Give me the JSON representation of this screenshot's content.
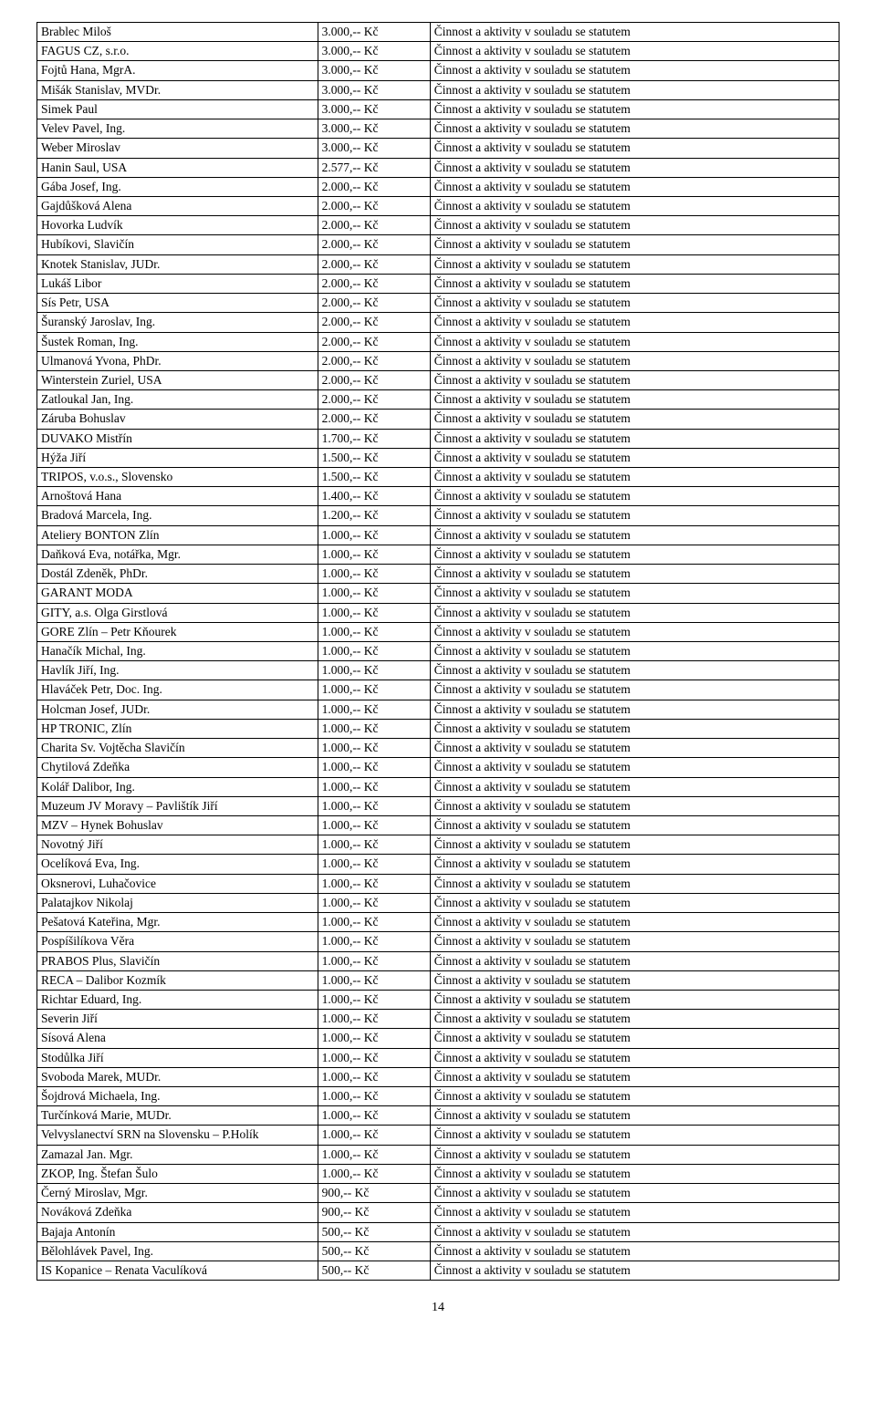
{
  "activity_text": "Činnost a aktivity v souladu se statutem",
  "rows": [
    {
      "name": "Brablec Miloš",
      "amount": "3.000,-- Kč"
    },
    {
      "name": "FAGUS CZ, s.r.o.",
      "amount": "3.000,-- Kč"
    },
    {
      "name": "Fojtů Hana, MgrA.",
      "amount": "3.000,-- Kč"
    },
    {
      "name": "Mišák Stanislav, MVDr.",
      "amount": "3.000,-- Kč"
    },
    {
      "name": "Simek Paul",
      "amount": "3.000,-- Kč"
    },
    {
      "name": "Velev Pavel, Ing.",
      "amount": "3.000,-- Kč"
    },
    {
      "name": "Weber Miroslav",
      "amount": "3.000,-- Kč"
    },
    {
      "name": "Hanin Saul, USA",
      "amount": "2.577,-- Kč"
    },
    {
      "name": "Gába Josef, Ing.",
      "amount": "2.000,-- Kč"
    },
    {
      "name": "Gajdůšková Alena",
      "amount": "2.000,-- Kč"
    },
    {
      "name": "Hovorka Ludvík",
      "amount": "2.000,-- Kč"
    },
    {
      "name": "Hubíkovi, Slavičín",
      "amount": "2.000,-- Kč"
    },
    {
      "name": "Knotek Stanislav, JUDr.",
      "amount": "2.000,-- Kč"
    },
    {
      "name": "Lukáš Libor",
      "amount": "2.000,-- Kč"
    },
    {
      "name": "Sís Petr, USA",
      "amount": "2.000,-- Kč"
    },
    {
      "name": "Šuranský Jaroslav, Ing.",
      "amount": "2.000,-- Kč"
    },
    {
      "name": "Šustek Roman, Ing.",
      "amount": "2.000,-- Kč"
    },
    {
      "name": "Ulmanová Yvona, PhDr.",
      "amount": "2.000,-- Kč"
    },
    {
      "name": "Winterstein Zuriel, USA",
      "amount": "2.000,-- Kč"
    },
    {
      "name": "Zatloukal Jan, Ing.",
      "amount": "2.000,-- Kč"
    },
    {
      "name": "Záruba Bohuslav",
      "amount": "2.000,-- Kč"
    },
    {
      "name": "DUVAKO Mistřín",
      "amount": "1.700,-- Kč"
    },
    {
      "name": "Hýža Jiří",
      "amount": "1.500,-- Kč"
    },
    {
      "name": "TRIPOS, v.o.s., Slovensko",
      "amount": "1.500,-- Kč"
    },
    {
      "name": "Arnoštová Hana",
      "amount": "1.400,-- Kč"
    },
    {
      "name": "Bradová Marcela, Ing.",
      "amount": "1.200,-- Kč"
    },
    {
      "name": "Ateliery BONTON Zlín",
      "amount": "1.000,-- Kč"
    },
    {
      "name": "Daňková Eva, notářka, Mgr.",
      "amount": "1.000,-- Kč"
    },
    {
      "name": "Dostál Zdeněk, PhDr.",
      "amount": "1.000,-- Kč"
    },
    {
      "name": "GARANT MODA",
      "amount": "1.000,-- Kč"
    },
    {
      "name": "GITY, a.s. Olga Girstlová",
      "amount": "1.000,-- Kč"
    },
    {
      "name": "GORE Zlín – Petr Kňourek",
      "amount": "1.000,-- Kč"
    },
    {
      "name": "Hanačík Michal, Ing.",
      "amount": "1.000,-- Kč"
    },
    {
      "name": "Havlík Jiří, Ing.",
      "amount": "1.000,-- Kč"
    },
    {
      "name": "Hlaváček Petr, Doc. Ing.",
      "amount": "1.000,-- Kč"
    },
    {
      "name": "Holcman Josef, JUDr.",
      "amount": "1.000,-- Kč"
    },
    {
      "name": "HP TRONIC, Zlín",
      "amount": "1.000,-- Kč"
    },
    {
      "name": "Charita Sv. Vojtěcha Slavičín",
      "amount": "1.000,-- Kč"
    },
    {
      "name": "Chytilová Zdeňka",
      "amount": "1.000,-- Kč"
    },
    {
      "name": "Kolář Dalibor, Ing.",
      "amount": "1.000,-- Kč"
    },
    {
      "name": "Muzeum JV Moravy – Pavlištík Jiří",
      "amount": "1.000,-- Kč"
    },
    {
      "name": "MZV – Hynek Bohuslav",
      "amount": "1.000,-- Kč"
    },
    {
      "name": "Novotný Jiří",
      "amount": "1.000,-- Kč"
    },
    {
      "name": "Ocelíková Eva, Ing.",
      "amount": "1.000,-- Kč"
    },
    {
      "name": "Oksnerovi, Luhačovice",
      "amount": "1.000,-- Kč"
    },
    {
      "name": "Palatajkov Nikolaj",
      "amount": "1.000,-- Kč"
    },
    {
      "name": "Pešatová Kateřina, Mgr.",
      "amount": "1.000,-- Kč"
    },
    {
      "name": "Pospíšilíkova Věra",
      "amount": "1.000,-- Kč"
    },
    {
      "name": "PRABOS Plus, Slavičín",
      "amount": "1.000,-- Kč"
    },
    {
      "name": "RECA – Dalibor Kozmík",
      "amount": "1.000,-- Kč"
    },
    {
      "name": "Richtar Eduard, Ing.",
      "amount": "1.000,-- Kč"
    },
    {
      "name": "Severin Jiří",
      "amount": "1.000,-- Kč"
    },
    {
      "name": "Sísová Alena",
      "amount": "1.000,-- Kč"
    },
    {
      "name": "Stodůlka Jiří",
      "amount": "1.000,-- Kč"
    },
    {
      "name": "Svoboda Marek, MUDr.",
      "amount": "1.000,-- Kč"
    },
    {
      "name": "Šojdrová Michaela, Ing.",
      "amount": "1.000,-- Kč"
    },
    {
      "name": "Turčínková Marie, MUDr.",
      "amount": "1.000,-- Kč"
    },
    {
      "name": "Velvyslanectví SRN na Slovensku – P.Holík",
      "amount": "1.000,-- Kč"
    },
    {
      "name": "Zamazal Jan. Mgr.",
      "amount": "1.000,-- Kč"
    },
    {
      "name": "ZKOP, Ing. Štefan Šulo",
      "amount": "1.000,-- Kč"
    },
    {
      "name": "Černý Miroslav, Mgr.",
      "amount": "900,-- Kč"
    },
    {
      "name": "Nováková Zdeňka",
      "amount": "900,-- Kč"
    },
    {
      "name": "Bajaja Antonín",
      "amount": "500,-- Kč"
    },
    {
      "name": "Bělohlávek Pavel, Ing.",
      "amount": "500,-- Kč"
    },
    {
      "name": "IS Kopanice – Renata Vaculíková",
      "amount": "500,-- Kč"
    }
  ],
  "page_number": "14"
}
